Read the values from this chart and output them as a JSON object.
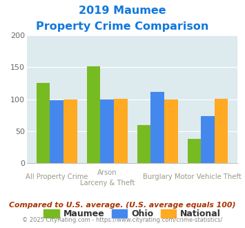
{
  "title_line1": "2019 Maumee",
  "title_line2": "Property Crime Comparison",
  "series": {
    "Maumee": [
      125,
      152,
      60,
      38
    ],
    "Ohio": [
      98,
      100,
      111,
      73
    ],
    "National": [
      100,
      101,
      100,
      101
    ]
  },
  "colors": {
    "Maumee": "#77bb22",
    "Ohio": "#4488ee",
    "National": "#ffaa22"
  },
  "ylim": [
    0,
    200
  ],
  "yticks": [
    0,
    50,
    100,
    150,
    200
  ],
  "plot_bg": "#ddeaee",
  "fig_bg": "#ffffff",
  "title_color": "#1177dd",
  "tick_color": "#666666",
  "footer_text": "Compared to U.S. average. (U.S. average equals 100)",
  "copyright_text": "© 2025 CityRating.com - https://www.cityrating.com/crime-statistics/",
  "footer_color": "#aa3300",
  "copyright_color": "#888888",
  "grid_color": "#ffffff",
  "xlabel_color": "#999988"
}
